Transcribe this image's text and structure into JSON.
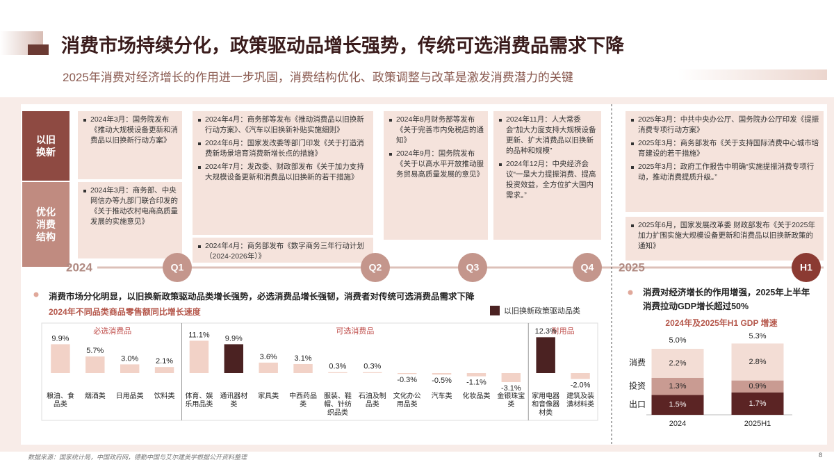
{
  "header": {
    "title": "消费市场持续分化，政策驱动品增长强势，传统可选消费品需求下降",
    "subtitle": "2025年消费对经济增长的作用进一步巩固，消费结构优化、政策调整与改革是激发消费潜力的关键"
  },
  "timeline": {
    "rows": [
      "以旧换新",
      "优化消费结构"
    ],
    "years": [
      "2024",
      "2025"
    ],
    "periods": [
      {
        "label": "Q1",
        "top": [
          "2024年3月：国务院发布《推动大规模设备更新和消费品以旧换新行动方案》"
        ],
        "bottom": [
          "2024年3月：商务部、中央网信办等九部门联合印发的《关于推动农村电商高质量发展的实施意见》"
        ]
      },
      {
        "label": "Q2",
        "top": [
          "2024年4月：商务部等发布《推动消费品以旧换新行动方案》、《汽车以旧换新补贴实施细则》",
          "2024年6月：国家发改委等部门印发《关于打造消费新场景培育消费新增长点的措施》",
          "2024年7月：发改委、财政部发布《关于加力支持大规模设备更新和消费品以旧换新的若干措施》"
        ],
        "bottom": [
          "2024年4月：商务部发布《数字商务三年行动计划（2024-2026年）》"
        ]
      },
      {
        "label": "Q3",
        "top": [
          "2024年8月财务部等发布《关于完善市内免税店的通知》",
          "2024年9月：国务院发布《关于以高水平开放推动服务贸易高质量发展的意见》"
        ]
      },
      {
        "label": "Q4",
        "top": [
          "2024年11月：人大常委会“加大力度支持大规模设备更新、扩大消费品以旧换新的品种和规模”",
          "2024年12月：中央经济会议“一是大力提振消费、提高投资效益，全方位扩大国内需求。”"
        ]
      },
      {
        "label": "H1",
        "top": [
          "2025年3月：中共中央办公厅、国务院办公厅印发《提振消费专项行动方案》",
          "2025年3月：商务部发布《关于支持国际消费中心城市培育建设的若干措施》",
          "2025年3月：政府工作报告中明确“实施提振消费专项行动，推动消费提质升级。”"
        ],
        "bottom": [
          "2025年6月，国家发展改革委 财政部发布《关于2025年加力扩围实施大规模设备更新和消费品以旧换新政策的通知》"
        ]
      }
    ]
  },
  "chart_data": [
    {
      "type": "bar",
      "heading": "消费市场分化明显，以旧换新政策驱动品类增长强势，必选消费品增长强韧，消费者对传统可选消费品需求下降",
      "title": "2024年不同品类商品零售额同比增长速度",
      "categories": [
        "粮油、食品类",
        "烟酒类",
        "日用品类",
        "饮料类",
        "体育、娱乐用品类",
        "通讯器材类",
        "家具类",
        "中西药品类",
        "服装、鞋帽、针纺织品类",
        "石油及制品类",
        "文化办公用品类",
        "汽车类",
        "化妆品类",
        "金银珠宝类",
        "家用电器和音像器材类",
        "建筑及装潢材料类"
      ],
      "values": [
        9.9,
        5.7,
        3.0,
        2.1,
        11.1,
        9.9,
        3.6,
        3.1,
        0.3,
        0.3,
        -0.3,
        -0.5,
        -1.1,
        -3.1,
        12.3,
        -2.0
      ],
      "value_labels": [
        "9.9%",
        "5.7%",
        "3.0%",
        "2.1%",
        "11.1%",
        "9.9%",
        "3.6%",
        "3.1%",
        "0.3%",
        "0.3%",
        "-0.3%",
        "-0.5%",
        "-1.1%",
        "-3.1%",
        "12.3%",
        "-2.0%"
      ],
      "colors": [
        "#f2d2c7",
        "#f2d2c7",
        "#f2d2c7",
        "#f2d2c7",
        "#f2d2c7",
        "#4b2222",
        "#f2d2c7",
        "#f2d2c7",
        "#f2d2c7",
        "#f2d2c7",
        "#f2d2c7",
        "#f2d2c7",
        "#f2d2c7",
        "#f2d2c7",
        "#4b2222",
        "#f2d2c7"
      ],
      "legend": {
        "name": "以旧换新政策驱动品类",
        "color": "#4b2222"
      },
      "groups": [
        {
          "name": "必选消费品",
          "count": 4
        },
        {
          "name": "可选消费品",
          "count": 10
        },
        {
          "name": "耐用品",
          "count": 2
        }
      ]
    },
    {
      "type": "stacked_bar",
      "heading": "消费对经济增长的作用增强，2025年上半年消费拉动GDP增长超过50%",
      "title": "2024年及2025年H1 GDP 增速",
      "categories": [
        "2024",
        "2025H1"
      ],
      "totals": [
        5.0,
        5.3
      ],
      "total_labels": [
        "5.0%",
        "5.3%"
      ],
      "series": [
        {
          "name": "出口",
          "color": "#5b2424",
          "values": [
            1.5,
            1.7
          ],
          "value_labels": [
            "1.5%",
            "1.7%"
          ]
        },
        {
          "name": "投资",
          "color": "#c99b92",
          "values": [
            1.3,
            0.9
          ],
          "value_labels": [
            "1.3%",
            "0.9%"
          ]
        },
        {
          "name": "消费",
          "color": "#f3ddd5",
          "values": [
            2.2,
            2.8
          ],
          "value_labels": [
            "2.2%",
            "2.8%"
          ]
        }
      ]
    }
  ],
  "footer": {
    "source": "数据来源：国家统计局，中国政府网，德勤中国与艾尔建美学根据公开资料整理",
    "page": "8"
  }
}
